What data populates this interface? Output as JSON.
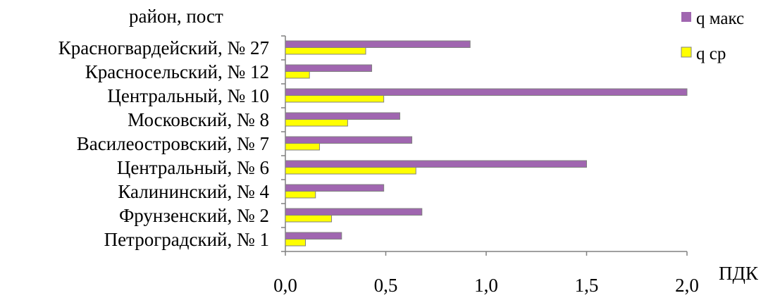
{
  "chart_data": {
    "type": "bar",
    "orientation": "horizontal",
    "ylabel": "район, пост",
    "xlabel": "ПДК",
    "xlim": [
      0,
      2
    ],
    "xticks": [
      "0,0",
      "0,5",
      "1,0",
      "1,5",
      "2,0"
    ],
    "categories": [
      "Красногвардейский, № 27",
      "Красносельский, № 12",
      "Центральный, № 10",
      "Московский, № 8",
      "Василеостровский, № 7",
      "Центральный, № 6",
      "Калининский, № 4",
      "Фрунзенский,  № 2",
      "Петроградский, № 1"
    ],
    "series": [
      {
        "name": "q макс",
        "color": "#a066b0",
        "values": [
          0.92,
          0.43,
          2.0,
          0.57,
          0.63,
          1.5,
          0.49,
          0.68,
          0.28
        ]
      },
      {
        "name": "q ср",
        "color": "#ffff00",
        "values": [
          0.4,
          0.12,
          0.49,
          0.31,
          0.17,
          0.65,
          0.15,
          0.23,
          0.1
        ]
      }
    ],
    "legend_position": "top-right",
    "grid": false
  }
}
